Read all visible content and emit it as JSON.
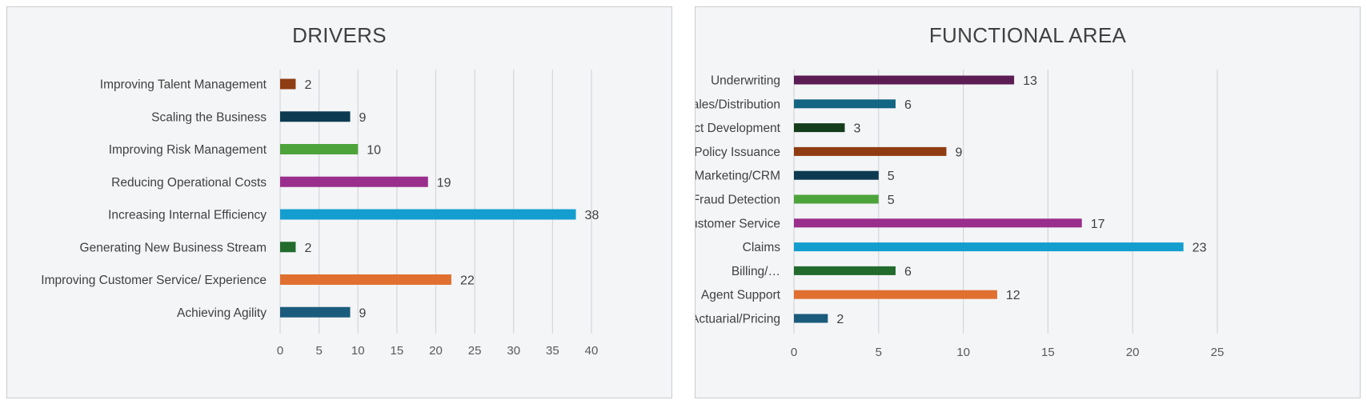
{
  "chart_data": [
    {
      "type": "bar",
      "orientation": "horizontal",
      "title": "DRIVERS",
      "categories": [
        "Achieving Agility",
        "Improving Customer Service/ Experience",
        "Generating New Business Stream",
        "Increasing Internal Efficiency",
        "Reducing Operational Costs",
        "Improving Risk Management",
        "Scaling the Business",
        "Improving Talent Management"
      ],
      "values": [
        9,
        22,
        2,
        38,
        19,
        10,
        9,
        2
      ],
      "colors": [
        "#1b5b7c",
        "#e07030",
        "#226b2c",
        "#149ecf",
        "#9a2e8c",
        "#4da43b",
        "#0d3a51",
        "#8f3c12"
      ],
      "xlim": [
        0,
        40
      ],
      "xticks": [
        0,
        5,
        10,
        15,
        20,
        25,
        30,
        35,
        40
      ],
      "grid": true,
      "data_labels": true,
      "xlabel": "",
      "ylabel": ""
    },
    {
      "type": "bar",
      "orientation": "horizontal",
      "title": "FUNCTIONAL AREA",
      "categories": [
        "Actuarial/Pricing",
        "Agent Support",
        "Billing/…",
        "Claims",
        "Customer Service",
        "Fraud Detection",
        "Marketing/CRM",
        "Policy Issuance",
        "Product Development",
        "Sales/Distribution",
        "Underwriting"
      ],
      "values": [
        2,
        12,
        6,
        23,
        17,
        5,
        5,
        9,
        3,
        6,
        13
      ],
      "colors": [
        "#1b5b7c",
        "#e07030",
        "#226b2c",
        "#149ecf",
        "#9a2e8c",
        "#4da43b",
        "#0d3a51",
        "#8f3c12",
        "#153d1b",
        "#126583",
        "#5c1d55"
      ],
      "xlim": [
        0,
        25
      ],
      "xticks": [
        0,
        5,
        10,
        15,
        20,
        25
      ],
      "grid": true,
      "data_labels": true,
      "xlabel": "",
      "ylabel": ""
    }
  ]
}
